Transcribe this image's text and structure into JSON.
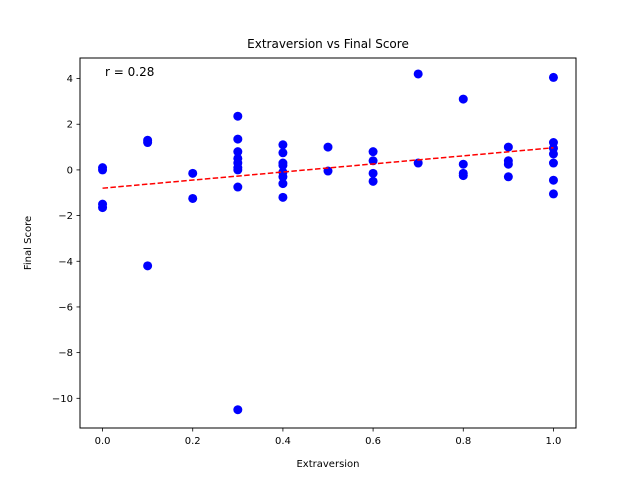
{
  "chart_data": {
    "type": "scatter",
    "title": "Extraversion vs Final Score",
    "xlabel": "Extraversion",
    "ylabel": "Final Score",
    "xlim": [
      -0.05,
      1.05
    ],
    "ylim": [
      -11.3,
      4.9
    ],
    "xticks": [
      0.0,
      0.2,
      0.4,
      0.6,
      0.8,
      1.0
    ],
    "xtick_labels": [
      "0.0",
      "0.2",
      "0.4",
      "0.6",
      "0.8",
      "1.0"
    ],
    "yticks": [
      -10,
      -8,
      -6,
      -4,
      -2,
      0,
      2,
      4
    ],
    "ytick_labels": [
      "−10",
      "−8",
      "−6",
      "−4",
      "−2",
      "0",
      "2",
      "4"
    ],
    "grid": false,
    "annotation": "r = 0.28",
    "point_color": "#0000ff",
    "trend_color": "#ff0000",
    "points": [
      [
        0.0,
        0.1
      ],
      [
        0.0,
        0.0
      ],
      [
        0.0,
        -1.5
      ],
      [
        0.0,
        -1.65
      ],
      [
        0.1,
        1.3
      ],
      [
        0.1,
        1.2
      ],
      [
        0.1,
        -4.2
      ],
      [
        0.2,
        -0.15
      ],
      [
        0.2,
        -1.25
      ],
      [
        0.3,
        2.35
      ],
      [
        0.3,
        1.35
      ],
      [
        0.3,
        0.8
      ],
      [
        0.3,
        0.5
      ],
      [
        0.3,
        0.3
      ],
      [
        0.3,
        0.1
      ],
      [
        0.3,
        0.0
      ],
      [
        0.3,
        -0.75
      ],
      [
        0.3,
        -10.5
      ],
      [
        0.4,
        1.1
      ],
      [
        0.4,
        0.75
      ],
      [
        0.4,
        0.3
      ],
      [
        0.4,
        0.2
      ],
      [
        0.4,
        -0.1
      ],
      [
        0.4,
        -0.3
      ],
      [
        0.4,
        -0.6
      ],
      [
        0.4,
        -1.2
      ],
      [
        0.5,
        1.0
      ],
      [
        0.5,
        -0.05
      ],
      [
        0.6,
        0.8
      ],
      [
        0.6,
        0.4
      ],
      [
        0.6,
        -0.15
      ],
      [
        0.6,
        -0.5
      ],
      [
        0.7,
        4.2
      ],
      [
        0.7,
        0.3
      ],
      [
        0.8,
        3.1
      ],
      [
        0.8,
        0.25
      ],
      [
        0.8,
        -0.15
      ],
      [
        0.8,
        -0.25
      ],
      [
        0.9,
        1.0
      ],
      [
        0.9,
        0.4
      ],
      [
        0.9,
        0.25
      ],
      [
        0.9,
        -0.3
      ],
      [
        1.0,
        4.05
      ],
      [
        1.0,
        1.2
      ],
      [
        1.0,
        0.95
      ],
      [
        1.0,
        0.7
      ],
      [
        1.0,
        0.3
      ],
      [
        1.0,
        -0.45
      ],
      [
        1.0,
        -1.05
      ]
    ],
    "trend_line": {
      "x": [
        0.0,
        1.0
      ],
      "y": [
        -0.8,
        0.97
      ],
      "style": "dashed"
    }
  }
}
